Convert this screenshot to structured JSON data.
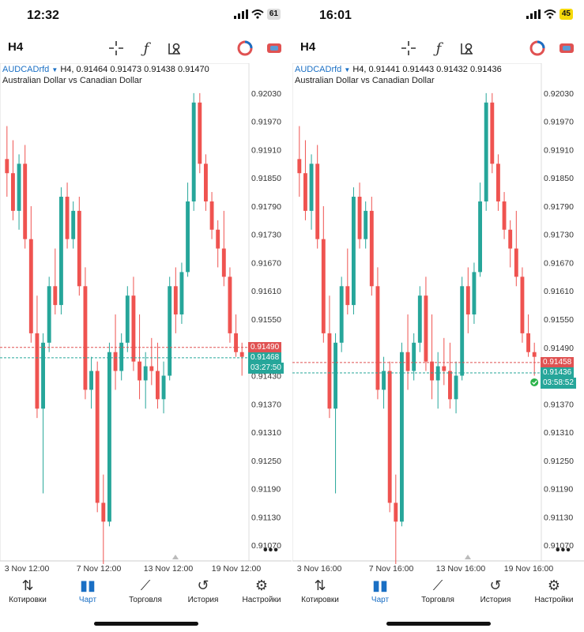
{
  "panels": [
    {
      "status_time": "12:32",
      "battery": "61",
      "battery_color": "#dddddd",
      "timeframe": "H4",
      "symbol": "AUDCADrfd",
      "ohlc": "H4, 0.91464 0.91473 0.91438 0.91470",
      "description": "Australian Dollar vs Canadian Dollar",
      "price_labels": [
        "0.92030",
        "0.91970",
        "0.91910",
        "0.91850",
        "0.91790",
        "0.91730",
        "0.91670",
        "0.91610",
        "0.91550",
        "0.91490",
        "0.91430",
        "0.91370",
        "0.91310",
        "0.91250",
        "0.91190",
        "0.91130",
        "0.91070"
      ],
      "ask_price": "0.91490",
      "bid_price": "0.91468",
      "countdown": "03:27:50",
      "date_labels": [
        "3 Nov 12:00",
        "7 Nov 12:00",
        "13 Nov 12:00",
        "19 Nov 12:00"
      ],
      "trade_marker": false
    },
    {
      "status_time": "16:01",
      "battery": "45",
      "battery_color": "#f5d90a",
      "timeframe": "H4",
      "symbol": "AUDCADrfd",
      "ohlc": "H4, 0.91441 0.91443 0.91432 0.91436",
      "description": "Australian Dollar vs Canadian Dollar",
      "price_labels": [
        "0.92030",
        "0.91970",
        "0.91910",
        "0.91850",
        "0.91790",
        "0.91730",
        "0.91670",
        "0.91610",
        "0.91550",
        "0.91490",
        "0.91430",
        "0.91370",
        "0.91310",
        "0.91250",
        "0.91190",
        "0.91130",
        "0.91070"
      ],
      "ask_price": "0.91458",
      "bid_price": "0.91436",
      "countdown": "03:58:52",
      "date_labels": [
        "3 Nov 16:00",
        "7 Nov 16:00",
        "13 Nov 16:00",
        "19 Nov 16:00"
      ],
      "trade_marker": true
    }
  ],
  "toolbar_icons": [
    "crosshair-icon",
    "function-icon",
    "objects-icon",
    "account-icon",
    "chat-icon"
  ],
  "nav": [
    {
      "label": "Котировки",
      "icon": "quotes-icon",
      "glyph": "⇅",
      "active": false
    },
    {
      "label": "Чарт",
      "icon": "chart-icon",
      "glyph": "▮▮",
      "active": true
    },
    {
      "label": "Торговля",
      "icon": "trade-icon",
      "glyph": "⟋",
      "active": false
    },
    {
      "label": "История",
      "icon": "history-icon",
      "glyph": "↺",
      "active": false
    },
    {
      "label": "Настройки",
      "icon": "settings-icon",
      "glyph": "⚙",
      "active": false
    }
  ],
  "colors": {
    "up": "#26a69a",
    "down": "#ef5350",
    "ask": "#e05252",
    "bid": "#26a69a",
    "accent": "#1a6fc4"
  },
  "chart_data": {
    "type": "candlestick",
    "series": [
      {
        "name": "AUDCADrfd H4",
        "candles": [
          [
            0.9189,
            0.9196,
            0.9181,
            0.9186
          ],
          [
            0.9186,
            0.9193,
            0.9176,
            0.9178
          ],
          [
            0.9178,
            0.919,
            0.9174,
            0.9188
          ],
          [
            0.9188,
            0.9192,
            0.917,
            0.9172
          ],
          [
            0.9172,
            0.9179,
            0.915,
            0.9152
          ],
          [
            0.9152,
            0.916,
            0.9134,
            0.9136
          ],
          [
            0.9136,
            0.9152,
            0.9118,
            0.915
          ],
          [
            0.915,
            0.9164,
            0.9148,
            0.9162
          ],
          [
            0.9162,
            0.917,
            0.9156,
            0.9158
          ],
          [
            0.9158,
            0.9183,
            0.9156,
            0.9181
          ],
          [
            0.9181,
            0.9184,
            0.917,
            0.9172
          ],
          [
            0.9172,
            0.918,
            0.917,
            0.9178
          ],
          [
            0.9178,
            0.9181,
            0.916,
            0.9162
          ],
          [
            0.9162,
            0.9166,
            0.9138,
            0.914
          ],
          [
            0.914,
            0.9147,
            0.9136,
            0.9144
          ],
          [
            0.9144,
            0.9146,
            0.9114,
            0.9116
          ],
          [
            0.9116,
            0.9122,
            0.9103,
            0.9112
          ],
          [
            0.9112,
            0.915,
            0.9111,
            0.9148
          ],
          [
            0.9148,
            0.9156,
            0.914,
            0.9144
          ],
          [
            0.9144,
            0.9152,
            0.9142,
            0.915
          ],
          [
            0.915,
            0.9162,
            0.9148,
            0.916
          ],
          [
            0.916,
            0.9164,
            0.9144,
            0.9146
          ],
          [
            0.9146,
            0.9156,
            0.9138,
            0.9142
          ],
          [
            0.9142,
            0.9148,
            0.9136,
            0.9145
          ],
          [
            0.9145,
            0.9151,
            0.9141,
            0.9144
          ],
          [
            0.9144,
            0.915,
            0.9136,
            0.9138
          ],
          [
            0.9138,
            0.9146,
            0.9135,
            0.9143
          ],
          [
            0.9143,
            0.9164,
            0.9142,
            0.9162
          ],
          [
            0.9162,
            0.9166,
            0.9152,
            0.9156
          ],
          [
            0.9156,
            0.9167,
            0.9154,
            0.9165
          ],
          [
            0.9165,
            0.9184,
            0.9164,
            0.918
          ],
          [
            0.918,
            0.9203,
            0.9178,
            0.9201
          ],
          [
            0.9201,
            0.9203,
            0.9186,
            0.9188
          ],
          [
            0.9188,
            0.919,
            0.9178,
            0.918
          ],
          [
            0.918,
            0.9182,
            0.9172,
            0.9174
          ],
          [
            0.9174,
            0.9176,
            0.9166,
            0.917
          ],
          [
            0.917,
            0.9178,
            0.9162,
            0.9164
          ],
          [
            0.9164,
            0.9166,
            0.915,
            0.9152
          ],
          [
            0.9152,
            0.9156,
            0.9147,
            0.9148
          ],
          [
            0.9148,
            0.915,
            0.9143,
            0.9147
          ]
        ]
      }
    ],
    "x_labels": [
      "3 Nov 12:00",
      "7 Nov 12:00",
      "13 Nov 12:00",
      "19 Nov 12:00"
    ],
    "ylim": [
      0.9104,
      0.9206
    ],
    "grid": false
  }
}
